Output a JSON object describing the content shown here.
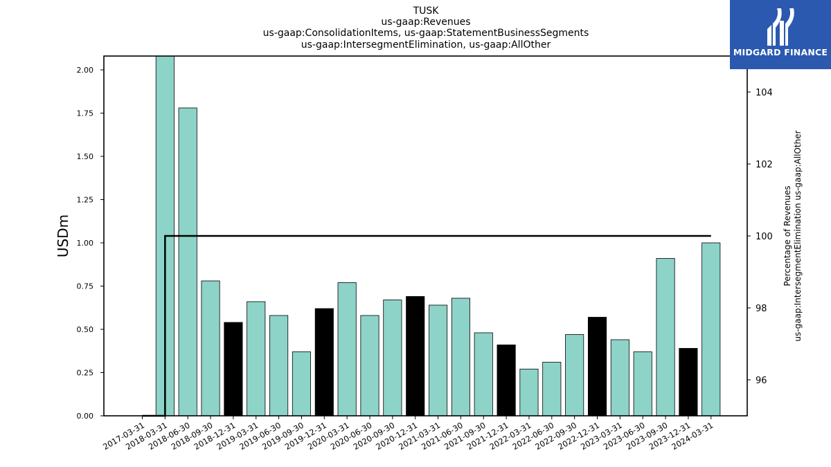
{
  "chart_data": {
    "type": "bar",
    "title": [
      "TUSK",
      "us-gaap:Revenues",
      "us-gaap:ConsolidationItems, us-gaap:StatementBusinessSegments",
      "us-gaap:IntersegmentElimination, us-gaap:AllOther"
    ],
    "ylabel": "USDm",
    "y2label": [
      "Percentage of Revenues",
      "us-gaap:IntersegmentElimination us-gaap:AllOther"
    ],
    "ylim": [
      0,
      2.08
    ],
    "y2lim": [
      95,
      105.0
    ],
    "yticks": [
      "0.00",
      "0.25",
      "0.50",
      "0.75",
      "1.00",
      "1.25",
      "1.50",
      "1.75",
      "2.00"
    ],
    "y2ticks": [
      "96",
      "98",
      "100",
      "102",
      "104"
    ],
    "categories": [
      "2017-03-31",
      "2018-03-31",
      "2018-06-30",
      "2018-09-30",
      "2018-12-31",
      "2019-03-31",
      "2019-06-30",
      "2019-09-30",
      "2019-12-31",
      "2020-03-31",
      "2020-06-30",
      "2020-09-30",
      "2020-12-31",
      "2021-03-31",
      "2021-06-30",
      "2021-09-30",
      "2021-12-31",
      "2022-03-31",
      "2022-06-30",
      "2022-09-30",
      "2022-12-31",
      "2023-03-31",
      "2023-06-30",
      "2023-09-30",
      "2023-12-31",
      "2024-03-31"
    ],
    "series": [
      {
        "type": "bar",
        "values": [
          null,
          2.09,
          1.78,
          0.78,
          0.54,
          0.66,
          0.58,
          0.37,
          0.62,
          0.77,
          0.58,
          0.67,
          0.69,
          0.64,
          0.68,
          0.48,
          0.41,
          0.27,
          0.31,
          0.47,
          0.57,
          0.44,
          0.37,
          0.91,
          0.39,
          1.0
        ],
        "colors": [
          "#8dd3c7",
          "#8dd3c7",
          "#8dd3c7",
          "#8dd3c7",
          "#000000",
          "#8dd3c7",
          "#8dd3c7",
          "#8dd3c7",
          "#000000",
          "#8dd3c7",
          "#8dd3c7",
          "#8dd3c7",
          "#000000",
          "#8dd3c7",
          "#8dd3c7",
          "#8dd3c7",
          "#000000",
          "#8dd3c7",
          "#8dd3c7",
          "#8dd3c7",
          "#000000",
          "#8dd3c7",
          "#8dd3c7",
          "#8dd3c7",
          "#000000",
          "#8dd3c7"
        ]
      },
      {
        "type": "step-line",
        "axis": "right",
        "color": "#000000",
        "values": [
          95.0,
          100,
          100,
          100,
          100,
          100,
          100,
          100,
          100,
          100,
          100,
          100,
          100,
          100,
          100,
          100,
          100,
          100,
          100,
          100,
          100,
          100,
          100,
          100,
          100,
          100
        ]
      }
    ],
    "legend": "none",
    "grid": false
  },
  "logo": {
    "text": "MIDGARD FINANCE",
    "color": "#2b59b0"
  }
}
